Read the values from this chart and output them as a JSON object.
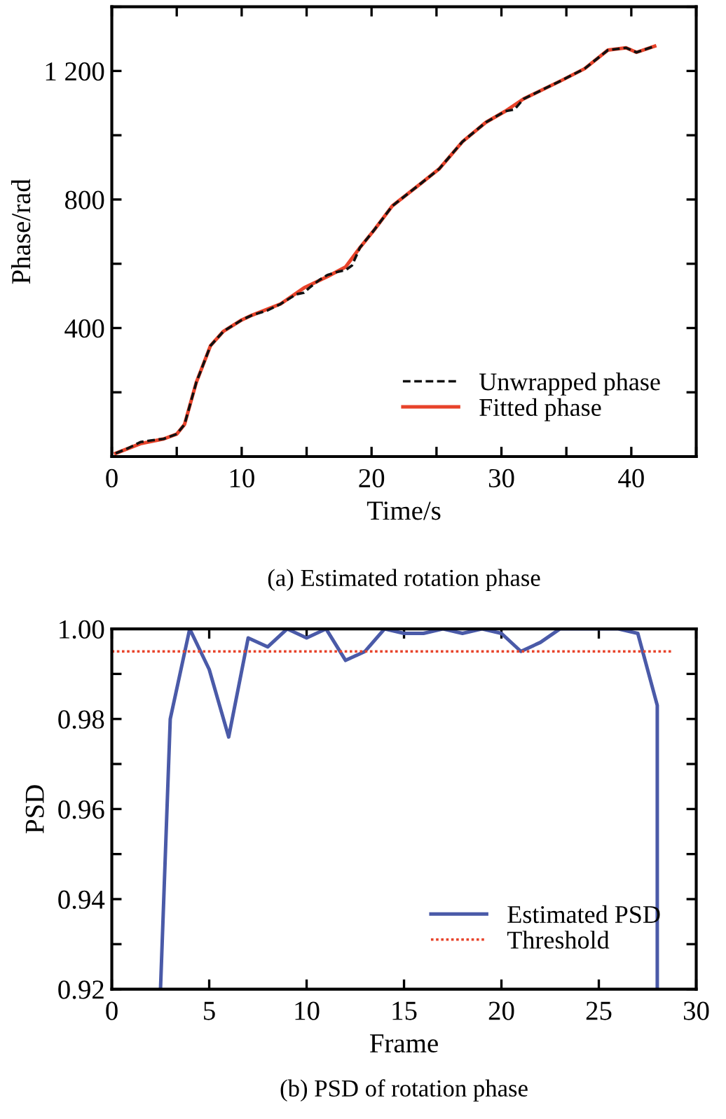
{
  "chart_data": [
    {
      "type": "line",
      "xlabel": "Time/s",
      "ylabel": "Phase/rad",
      "annotations": [
        "(a) Estimated rotation phase"
      ],
      "xlim": [
        0,
        45
      ],
      "ylim": [
        0,
        1400
      ],
      "xticks": [
        0,
        {
          "value": 5,
          "label": null
        },
        10,
        {
          "value": 15,
          "label": null
        },
        20,
        {
          "value": 25,
          "label": null
        },
        30,
        {
          "value": 35,
          "label": null
        },
        40,
        {
          "value": 45,
          "label": null
        }
      ],
      "yticks": [
        {
          "value": 0,
          "label": null
        },
        {
          "value": 200,
          "label": null
        },
        400,
        {
          "value": 600,
          "label": null
        },
        800,
        {
          "value": 1000,
          "label": null
        },
        {
          "value": 1200,
          "label": "1 200"
        },
        {
          "value": 1400,
          "label": null
        }
      ],
      "grid": false,
      "legend": "bottom right",
      "series": [
        {
          "name": "Unwrapped phase",
          "color": "#111111",
          "line_style": "dashed",
          "x": [
            0.3,
            1.2,
            2.2,
            3.0,
            4.0,
            5.0,
            5.6,
            6.5,
            7.6,
            8.6,
            10.0,
            10.8,
            12.0,
            13.0,
            14.2,
            14.8,
            15.2,
            16.0,
            16.6,
            17.4,
            18.0,
            18.5,
            19.1,
            20.2,
            21.6,
            23.8,
            25.2,
            27.0,
            28.8,
            30.3,
            31.0,
            31.7,
            34.6,
            36.4,
            38.2,
            39.6,
            40.4,
            41.8
          ],
          "values": [
            10,
            25,
            45,
            50,
            55,
            70,
            100,
            230,
            345,
            390,
            425,
            440,
            455,
            475,
            505,
            510,
            525,
            550,
            565,
            575,
            580,
            595,
            650,
            705,
            780,
            850,
            895,
            980,
            1040,
            1075,
            1080,
            1113,
            1170,
            1207,
            1265,
            1272,
            1258,
            1277
          ]
        },
        {
          "name": "Fitted phase",
          "color": "#e8432a",
          "line_style": "solid",
          "x": [
            0.3,
            2.2,
            4.0,
            5.0,
            5.6,
            6.5,
            7.6,
            8.6,
            10.0,
            10.8,
            13.0,
            14.8,
            16.6,
            18.0,
            19.1,
            20.2,
            21.6,
            23.8,
            25.2,
            27.0,
            28.8,
            30.3,
            31.7,
            34.6,
            36.4,
            38.2,
            39.6,
            40.4,
            41.8
          ],
          "values": [
            10,
            40,
            55,
            70,
            100,
            230,
            345,
            390,
            425,
            440,
            475,
            525,
            560,
            590,
            650,
            705,
            780,
            850,
            895,
            980,
            1040,
            1075,
            1113,
            1170,
            1207,
            1265,
            1272,
            1258,
            1277
          ]
        }
      ]
    },
    {
      "type": "line",
      "xlabel": "Frame",
      "ylabel": "PSD",
      "annotations": [
        "(b) PSD of rotation phase"
      ],
      "xlim": [
        0,
        30
      ],
      "ylim": [
        0.92,
        1.0
      ],
      "xticks": [
        0,
        5,
        10,
        15,
        20,
        25,
        30
      ],
      "yticks": [
        0.92,
        {
          "value": 0.93,
          "label": null
        },
        0.94,
        {
          "value": 0.95,
          "label": null
        },
        0.96,
        {
          "value": 0.97,
          "label": null
        },
        0.98,
        {
          "value": 0.99,
          "label": null
        },
        {
          "value": 1.0,
          "label": "1.00"
        }
      ],
      "grid": false,
      "legend": "bottom right",
      "series": [
        {
          "name": "Estimated PSD",
          "color": "#4a5aa8",
          "line_style": "solid",
          "x": [
            2.5,
            3,
            4,
            5,
            6,
            7,
            8,
            9,
            10,
            11,
            12,
            13,
            14,
            15,
            16,
            17,
            18,
            19,
            20,
            21,
            22,
            23,
            24,
            25,
            26,
            27,
            28,
            28
          ],
          "values": [
            0.92,
            0.98,
            1.0,
            0.991,
            0.976,
            0.998,
            0.996,
            1.0,
            0.998,
            1.0,
            0.993,
            0.995,
            1.0,
            0.999,
            0.999,
            1.0,
            0.999,
            1.0,
            0.999,
            0.995,
            0.997,
            1.0,
            1.0,
            1.0,
            1.0,
            0.999,
            0.983,
            0.92
          ]
        },
        {
          "name": "Threshold",
          "color": "#e8432a",
          "line_style": "dotted",
          "x": [
            0,
            28.8
          ],
          "values": [
            0.995,
            0.995
          ]
        }
      ]
    }
  ]
}
